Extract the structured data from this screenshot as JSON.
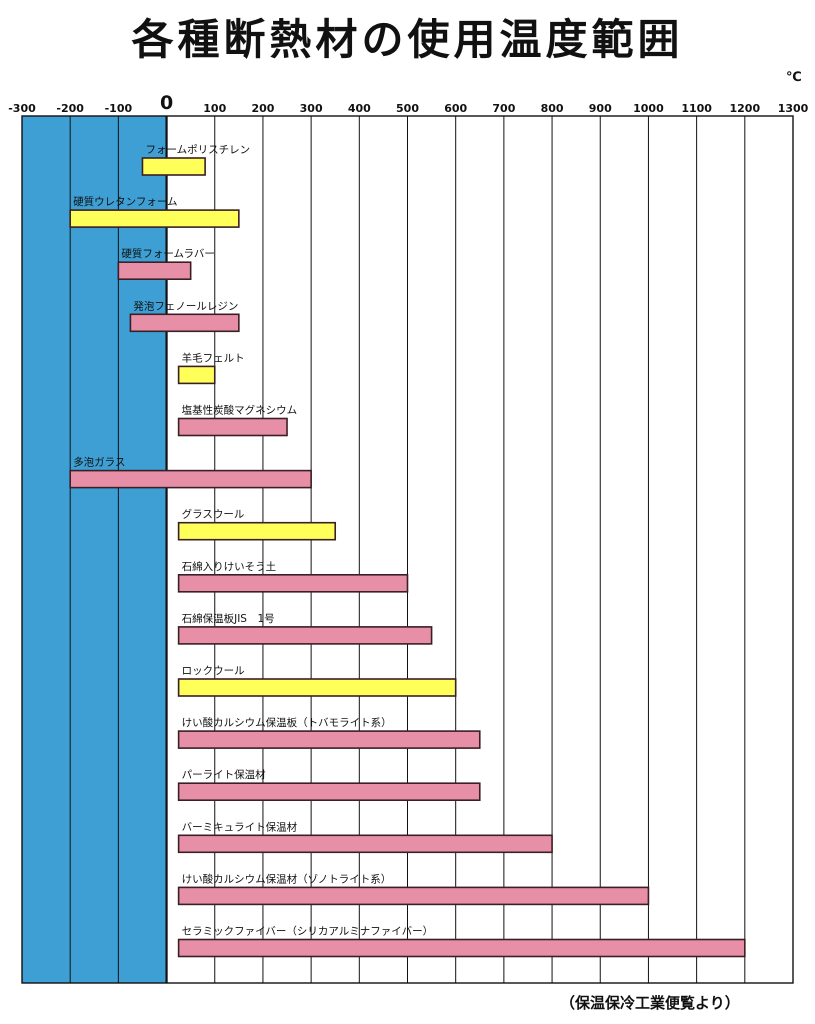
{
  "title": "各種断熱材の使用温度範囲",
  "unit": "℃",
  "source": "（保温保冷工業便覧より）",
  "chart_data": {
    "type": "bar",
    "orientation": "horizontal-range",
    "xlim": [
      -300,
      1300
    ],
    "x_ticks": [
      -300,
      -200,
      -100,
      0,
      100,
      200,
      300,
      400,
      500,
      600,
      700,
      800,
      900,
      1000,
      1100,
      1200,
      1300
    ],
    "x_tick_labels": [
      "-300",
      "-200",
      "-100",
      "0",
      "100",
      "200",
      "300",
      "400",
      "500",
      "600",
      "700",
      "800",
      "900",
      "1000",
      "1100",
      "1200",
      "1300"
    ],
    "grid": true,
    "shaded_region": {
      "from": -300,
      "to": 0,
      "color": "#3d9fd3"
    },
    "colors": {
      "yellow": "#ffff5a",
      "pink": "#e88fa8",
      "border": "#3a1f26"
    },
    "bars": [
      {
        "label": "フォームポリスチレン",
        "min": -50,
        "max": 80,
        "color": "yellow"
      },
      {
        "label": "硬質ウレタンフォーム",
        "min": -200,
        "max": 150,
        "color": "yellow"
      },
      {
        "label": "硬質フォームラバー",
        "min": -100,
        "max": 50,
        "color": "pink"
      },
      {
        "label": "発泡フェノールレジン",
        "min": -75,
        "max": 150,
        "color": "pink"
      },
      {
        "label": "羊毛フェルト",
        "min": 25,
        "max": 100,
        "color": "yellow"
      },
      {
        "label": "塩基性炭酸マグネシウム",
        "min": 25,
        "max": 250,
        "color": "pink"
      },
      {
        "label": "多泡ガラス",
        "min": -200,
        "max": 300,
        "color": "pink"
      },
      {
        "label": "グラスウール",
        "min": 25,
        "max": 350,
        "color": "yellow"
      },
      {
        "label": "石綿入りけいそう土",
        "min": 25,
        "max": 500,
        "color": "pink"
      },
      {
        "label": "石綿保温板JIS　1号",
        "min": 25,
        "max": 550,
        "color": "pink"
      },
      {
        "label": "ロックウール",
        "min": 25,
        "max": 600,
        "color": "yellow"
      },
      {
        "label": "けい酸カルシウム保温板（トバモライト系）",
        "min": 25,
        "max": 650,
        "color": "pink"
      },
      {
        "label": "パーライト保温材",
        "min": 25,
        "max": 650,
        "color": "pink"
      },
      {
        "label": "バーミキュライト保温材",
        "min": 25,
        "max": 800,
        "color": "pink"
      },
      {
        "label": "けい酸カルシウム保温材（ゾノトライト系）",
        "min": 25,
        "max": 1000,
        "color": "pink"
      },
      {
        "label": "セラミックファイバー（シリカアルミナファイバー）",
        "min": 25,
        "max": 1200,
        "color": "pink"
      }
    ]
  }
}
